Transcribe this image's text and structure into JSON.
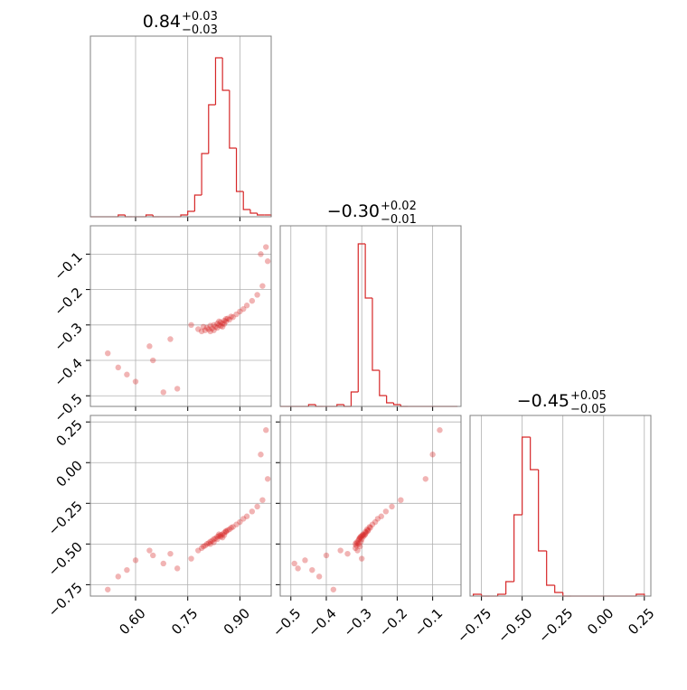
{
  "chart_data": {
    "type": "corner",
    "color": "#d62728",
    "grid": true,
    "hist_ylim": [
      0,
      100
    ],
    "parameters": [
      {
        "title": "0.84",
        "upper": "+0.03",
        "lower": "−0.03",
        "lim": [
          0.47,
          0.99
        ],
        "ticks": [
          {
            "value": 0.6,
            "label": "0.60"
          },
          {
            "value": 0.75,
            "label": "0.75"
          },
          {
            "value": 0.9,
            "label": "0.90"
          }
        ],
        "bins": [
          0.47,
          0.49,
          0.51,
          0.53,
          0.55,
          0.57,
          0.59,
          0.61,
          0.63,
          0.65,
          0.67,
          0.69,
          0.71,
          0.73,
          0.75,
          0.77,
          0.79,
          0.81,
          0.83,
          0.85,
          0.87,
          0.89,
          0.91,
          0.93,
          0.95,
          0.97,
          0.99
        ],
        "counts": [
          0,
          0,
          0,
          0,
          1,
          0,
          0,
          0,
          1,
          0,
          0,
          0,
          0,
          1,
          3,
          12,
          35,
          62,
          88,
          70,
          38,
          14,
          4,
          2,
          1,
          1
        ]
      },
      {
        "title": "−0.30",
        "upper": "+0.02",
        "lower": "−0.01",
        "lim": [
          -0.53,
          -0.02
        ],
        "ticks": [
          {
            "value": -0.5,
            "label": "−0.5"
          },
          {
            "value": -0.4,
            "label": "−0.4"
          },
          {
            "value": -0.3,
            "label": "−0.3"
          },
          {
            "value": -0.2,
            "label": "−0.2"
          },
          {
            "value": -0.1,
            "label": "−0.1"
          }
        ],
        "bins": [
          -0.53,
          -0.51,
          -0.49,
          -0.47,
          -0.45,
          -0.43,
          -0.41,
          -0.39,
          -0.37,
          -0.35,
          -0.33,
          -0.31,
          -0.29,
          -0.27,
          -0.25,
          -0.23,
          -0.21,
          -0.19,
          -0.17,
          -0.15,
          -0.13,
          -0.11,
          -0.09,
          -0.07,
          -0.05,
          -0.03
        ],
        "counts": [
          0,
          0,
          0,
          0,
          1,
          0,
          0,
          0,
          1,
          0,
          8,
          90,
          60,
          20,
          6,
          2,
          1,
          0,
          0,
          0,
          0,
          0,
          0,
          0,
          0
        ]
      },
      {
        "title": "−0.45",
        "upper": "+0.05",
        "lower": "−0.05",
        "lim": [
          -0.82,
          0.29
        ],
        "ticks": [
          {
            "value": -0.75,
            "label": "−0.75"
          },
          {
            "value": -0.5,
            "label": "−0.50"
          },
          {
            "value": -0.25,
            "label": "−0.25"
          },
          {
            "value": 0,
            "label": "0.00"
          },
          {
            "value": 0.25,
            "label": "0.25"
          }
        ],
        "bins": [
          -0.8,
          -0.75,
          -0.7,
          -0.65,
          -0.6,
          -0.55,
          -0.5,
          -0.45,
          -0.4,
          -0.35,
          -0.3,
          -0.25,
          -0.2,
          -0.15,
          -0.1,
          -0.05,
          0,
          0.05,
          0.1,
          0.15,
          0.2,
          0.25
        ],
        "counts": [
          1,
          0,
          0,
          1,
          8,
          45,
          88,
          70,
          25,
          6,
          2,
          0,
          0,
          0,
          0,
          0,
          0,
          0,
          0,
          0,
          1
        ]
      }
    ],
    "samples": [
      [
        0.78,
        0.79,
        0.795,
        0.8,
        0.805,
        0.81,
        0.815,
        0.82,
        0.825,
        0.83,
        0.835,
        0.84,
        0.845,
        0.85,
        0.855,
        0.86,
        0.865,
        0.87,
        0.875,
        0.88,
        0.89,
        0.9,
        0.91,
        0.92,
        0.935,
        0.95,
        0.965,
        0.98,
        0.825,
        0.835,
        0.845,
        0.855,
        0.815,
        0.84,
        0.86,
        0.85,
        0.52,
        0.55,
        0.6,
        0.65,
        0.7,
        0.72,
        0.76,
        0.68,
        0.64,
        0.575,
        0.96,
        0.975
      ],
      [
        -0.312,
        -0.318,
        -0.305,
        -0.315,
        -0.308,
        -0.312,
        -0.302,
        -0.31,
        -0.3,
        -0.305,
        -0.296,
        -0.3,
        -0.292,
        -0.296,
        -0.288,
        -0.29,
        -0.282,
        -0.285,
        -0.276,
        -0.278,
        -0.27,
        -0.262,
        -0.255,
        -0.245,
        -0.232,
        -0.215,
        -0.19,
        -0.12,
        -0.315,
        -0.308,
        -0.303,
        -0.297,
        -0.318,
        -0.29,
        -0.283,
        -0.305,
        -0.38,
        -0.42,
        -0.46,
        -0.4,
        -0.34,
        -0.48,
        -0.3,
        -0.49,
        -0.36,
        -0.44,
        -0.1,
        -0.08
      ],
      [
        -0.54,
        -0.525,
        -0.515,
        -0.51,
        -0.5,
        -0.495,
        -0.485,
        -0.48,
        -0.47,
        -0.465,
        -0.455,
        -0.45,
        -0.445,
        -0.44,
        -0.43,
        -0.425,
        -0.415,
        -0.41,
        -0.4,
        -0.395,
        -0.38,
        -0.365,
        -0.345,
        -0.33,
        -0.3,
        -0.27,
        -0.23,
        -0.1,
        -0.49,
        -0.47,
        -0.455,
        -0.445,
        -0.5,
        -0.44,
        -0.42,
        -0.46,
        -0.78,
        -0.7,
        -0.6,
        -0.57,
        -0.56,
        -0.65,
        -0.59,
        -0.62,
        -0.54,
        -0.66,
        0.05,
        0.2
      ]
    ]
  }
}
